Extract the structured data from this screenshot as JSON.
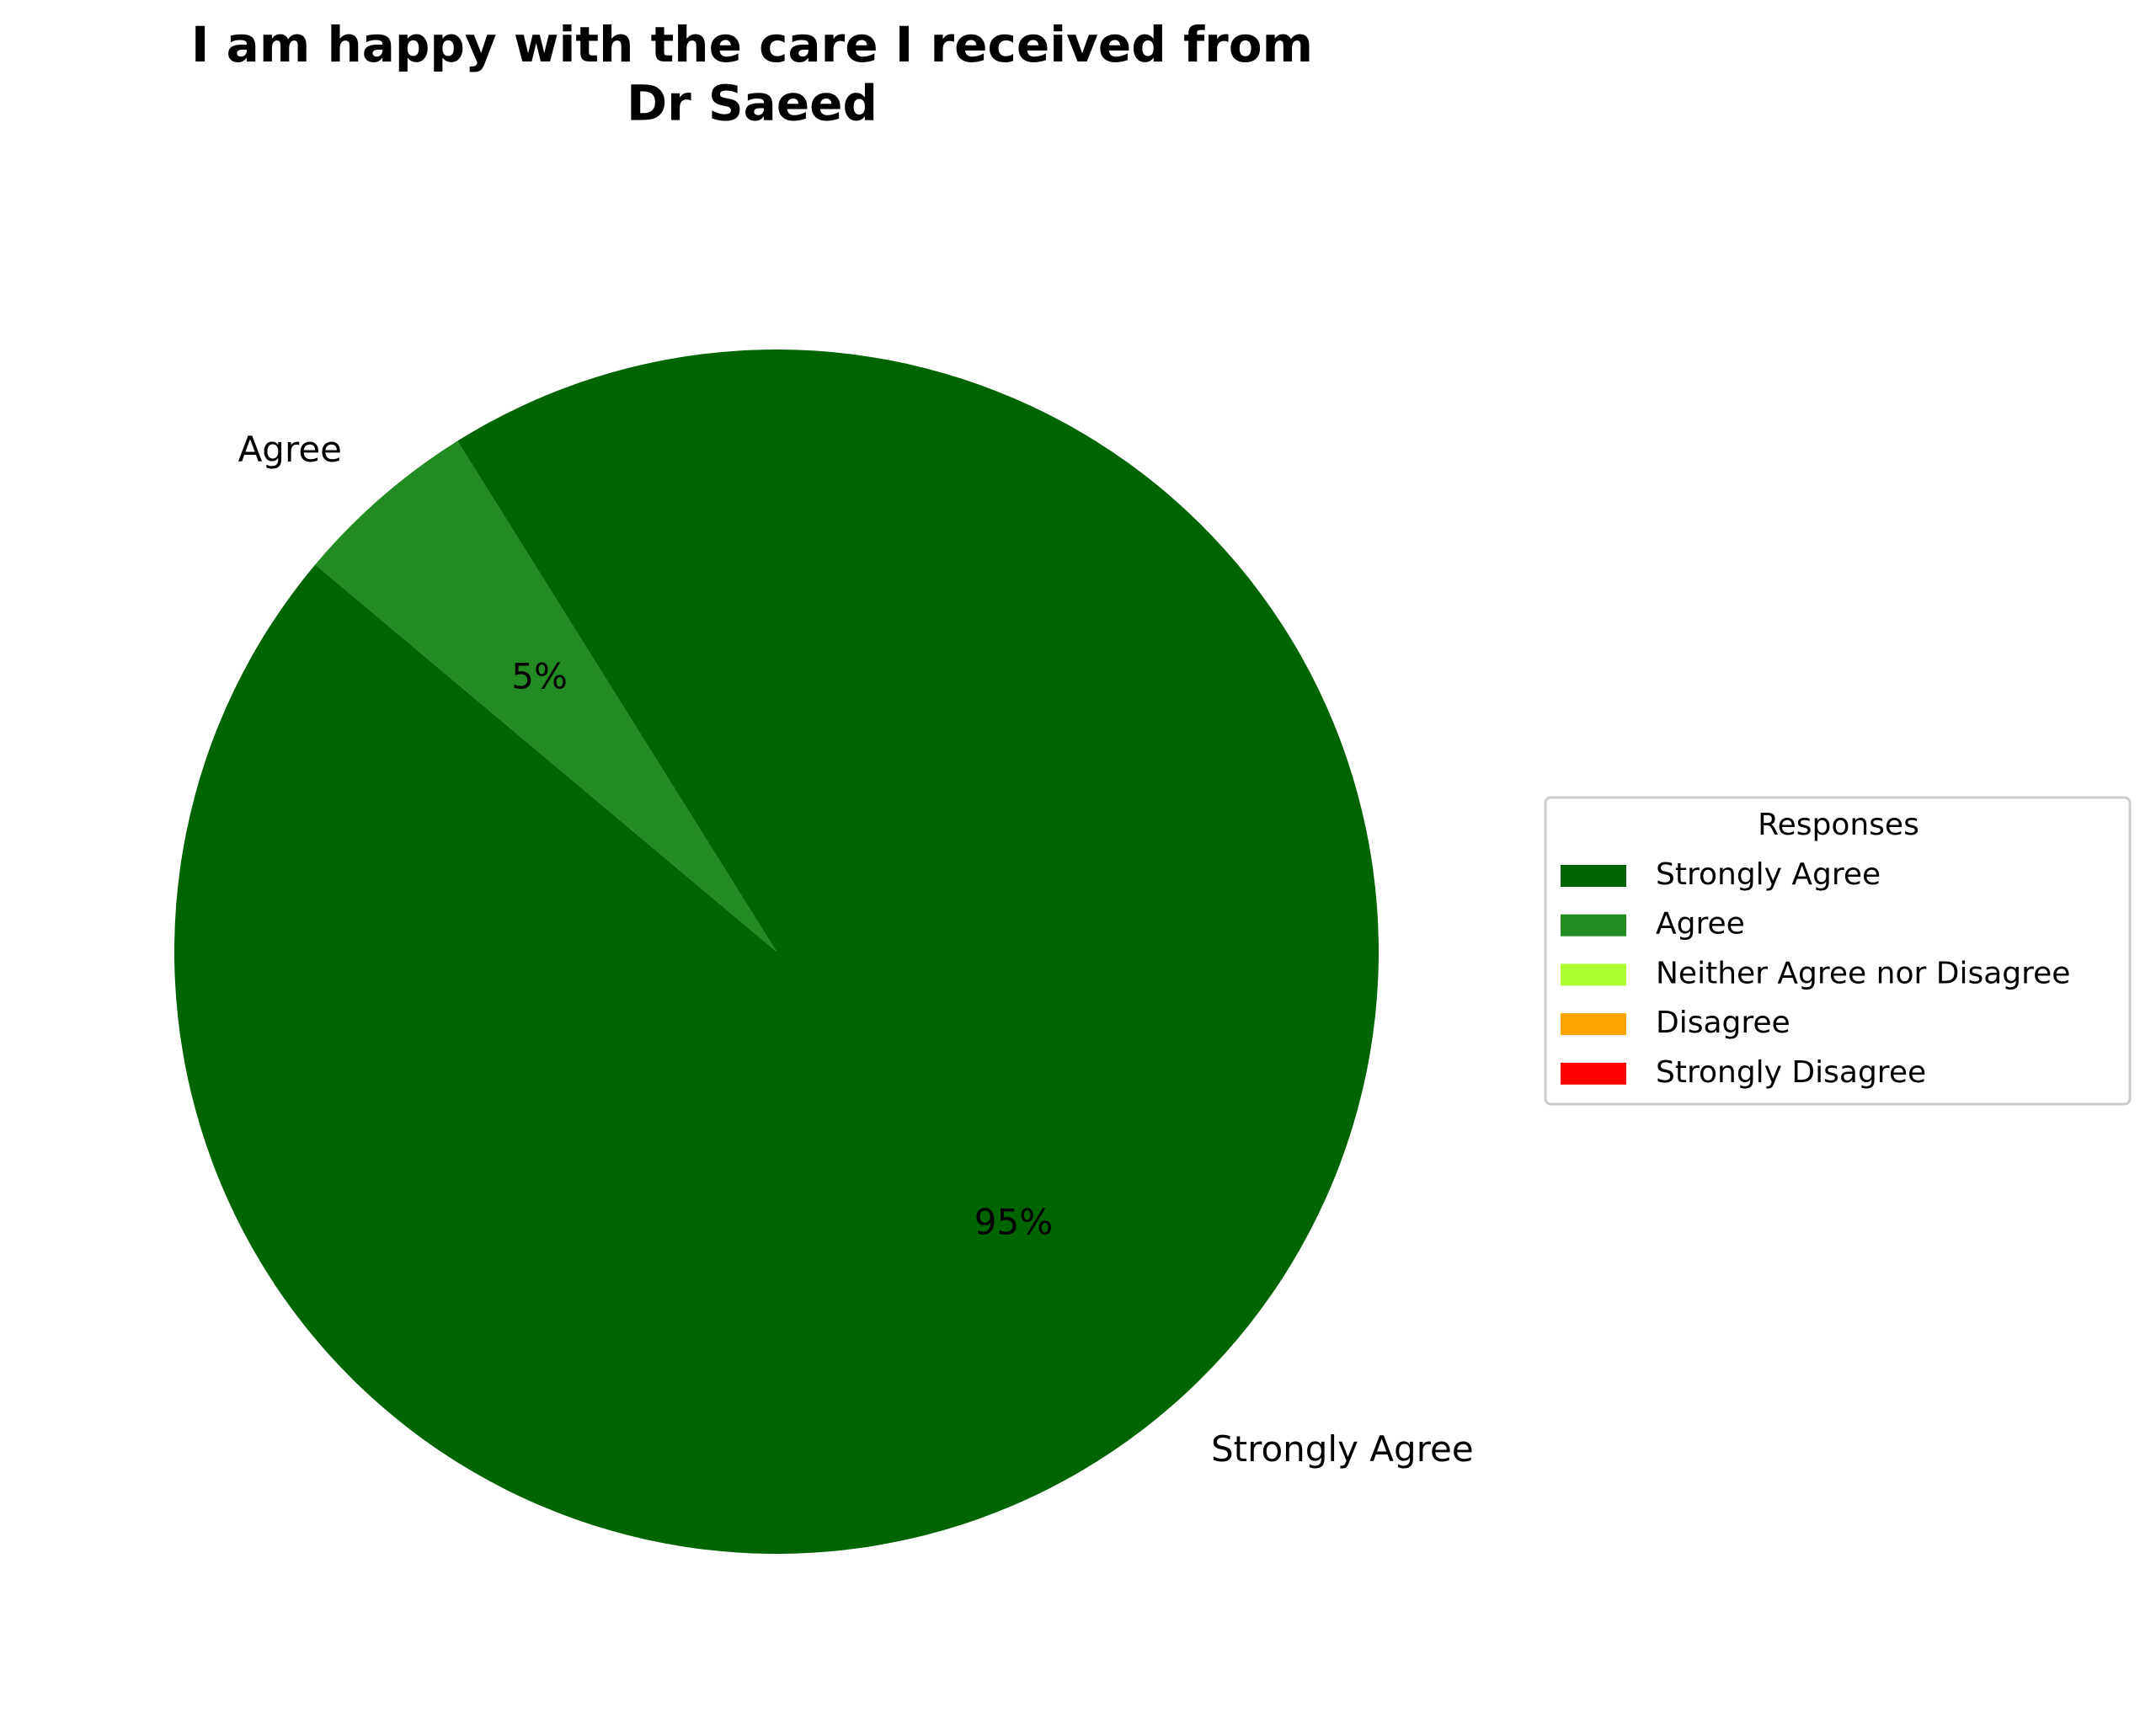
{
  "chart_data": {
    "type": "pie",
    "title": "I am happy with the care I received from\nDr Saeed",
    "categories": [
      "Strongly Agree",
      "Agree",
      "Neither Agree nor Disagree",
      "Disagree",
      "Strongly Disagree"
    ],
    "values": [
      95,
      5,
      0,
      0,
      0
    ],
    "value_labels": [
      "95%",
      "5%",
      null,
      null,
      null
    ],
    "colors": [
      "#006400",
      "#228B22",
      "#ADFF2F",
      "#FFA500",
      "#FF0000"
    ],
    "legend_title": "Responses",
    "legend": "right"
  }
}
